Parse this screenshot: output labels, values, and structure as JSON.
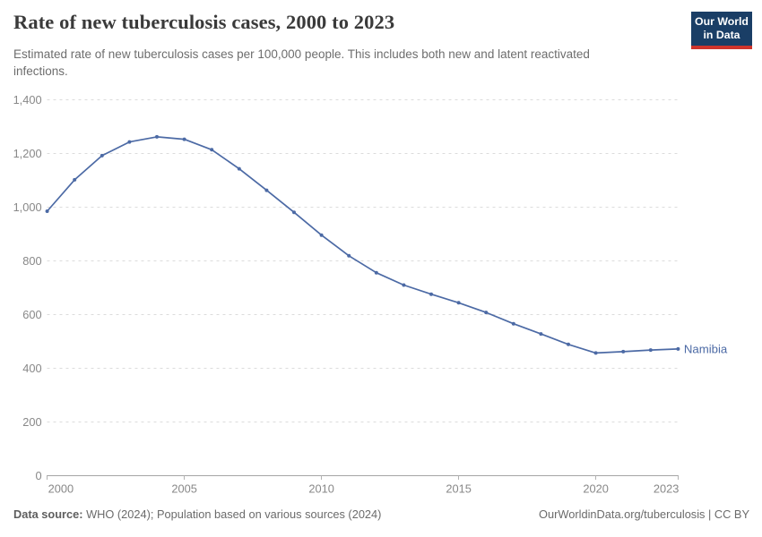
{
  "header": {
    "title": "Rate of new tuberculosis cases, 2000 to 2023",
    "subtitle": "Estimated rate of new tuberculosis cases per 100,000 people. This includes both new and latent reactivated infections.",
    "logo": {
      "line1": "Our World",
      "line2": "in Data",
      "bg_color": "#1a3e66",
      "bar_color": "#cf342c"
    }
  },
  "chart_data": {
    "type": "line",
    "title": "Rate of new tuberculosis cases, 2000 to 2023",
    "xlabel": "",
    "ylabel": "",
    "xlim": [
      2000,
      2023
    ],
    "ylim": [
      0,
      1400
    ],
    "grid": "horizontal-dashed",
    "legend_position": "end-of-line",
    "x_ticks": [
      2000,
      2005,
      2010,
      2015,
      2020,
      2023
    ],
    "y_ticks": [
      0,
      200,
      400,
      600,
      800,
      1000,
      1200,
      1400
    ],
    "y_tick_labels": [
      "0",
      "200",
      "400",
      "600",
      "800",
      "1,000",
      "1,200",
      "1,400"
    ],
    "series": [
      {
        "name": "Namibia",
        "color": "#4c6aa5",
        "x": [
          2000,
          2001,
          2002,
          2003,
          2004,
          2005,
          2006,
          2007,
          2008,
          2009,
          2010,
          2011,
          2012,
          2013,
          2014,
          2015,
          2016,
          2017,
          2018,
          2019,
          2020,
          2021,
          2022,
          2023
        ],
        "values": [
          985,
          1102,
          1192,
          1243,
          1262,
          1253,
          1214,
          1143,
          1063,
          981,
          896,
          819,
          756,
          710,
          676,
          644,
          608,
          566,
          528,
          489,
          457,
          462,
          468,
          472
        ]
      }
    ]
  },
  "footer": {
    "datasource_label": "Data source:",
    "datasource_text": " WHO (2024); Population based on various sources (2024)",
    "rights": "OurWorldinData.org/tuberculosis | CC BY"
  }
}
